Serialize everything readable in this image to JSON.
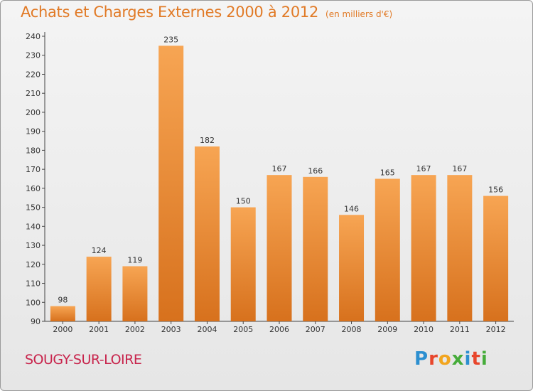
{
  "title": "Achats et Charges Externes 2000 à 2012",
  "subtitle": "(en milliers d'€)",
  "place": "SOUGY-SUR-LOIRE",
  "logo": {
    "letters": [
      "P",
      "r",
      "o",
      "x",
      "i",
      "t",
      "i"
    ],
    "colors": [
      "#2c8fd0",
      "#e8462c",
      "#f2a51e",
      "#46ac3a",
      "#2c8fd0",
      "#e8462c",
      "#46ac3a"
    ]
  },
  "colors": {
    "bar": "#f39b46",
    "bar_dark": "#d9731f",
    "title": "#e17a26",
    "place": "#c8244c"
  },
  "chart_data": {
    "type": "bar",
    "categories": [
      "2000",
      "2001",
      "2002",
      "2003",
      "2004",
      "2005",
      "2006",
      "2007",
      "2008",
      "2009",
      "2010",
      "2011",
      "2012"
    ],
    "values": [
      98,
      124,
      119,
      235,
      182,
      150,
      167,
      166,
      146,
      165,
      167,
      167,
      156
    ],
    "ylim": [
      90,
      240
    ],
    "yticks": [
      90,
      100,
      110,
      120,
      130,
      140,
      150,
      160,
      170,
      180,
      190,
      200,
      210,
      220,
      230,
      240
    ],
    "grid": false
  }
}
